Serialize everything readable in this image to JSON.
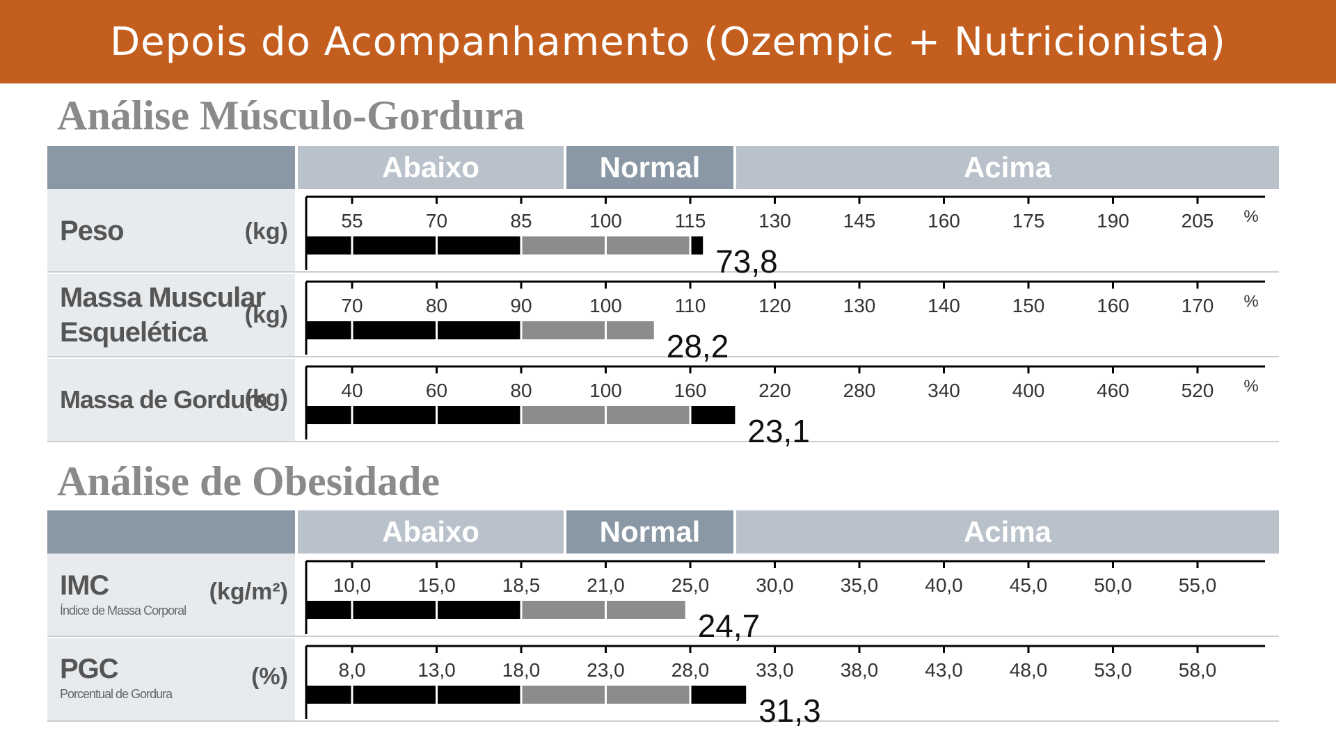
{
  "header": {
    "title": "Depois do Acompanhamento (Ozempic + Nutricionista)"
  },
  "sections": [
    {
      "title": "Análise Músculo-Gordura",
      "bands": {
        "below": "Abaixo",
        "normal": "Normal",
        "above": "Acima"
      }
    },
    {
      "title": "Análise de Obesidade",
      "bands": {
        "below": "Abaixo",
        "normal": "Normal",
        "above": "Acima"
      }
    }
  ],
  "rows": {
    "peso": {
      "name": "Peso",
      "unit": "(kg)"
    },
    "smm": {
      "name_line1": "Massa Muscular",
      "name_line2": "Esquelética",
      "unit": "(kg)"
    },
    "fat": {
      "name": "Massa de Gordura",
      "unit": "(kg)"
    },
    "imc": {
      "name": "IMC",
      "subtitle": "Índice de Massa Corporal",
      "unit": "(kg/m²)"
    },
    "pgc": {
      "name": "PGC",
      "subtitle": "Porcentual de Gordura",
      "unit": "(%)"
    }
  },
  "colors": {
    "banner": "#c45e1e",
    "bar_below": "#000000",
    "bar_normal": "#8c8c8c",
    "bar_above": "#000000"
  },
  "chart_data": [
    {
      "type": "bar",
      "name": "Peso",
      "scale_ticks": [
        "55",
        "70",
        "85",
        "100",
        "115",
        "130",
        "145",
        "160",
        "175",
        "190",
        "205"
      ],
      "scale_unit": "%",
      "bar_extent_ticks": 4.15,
      "value": "73,8"
    },
    {
      "type": "bar",
      "name": "Massa Muscular Esquelética",
      "scale_ticks": [
        "70",
        "80",
        "90",
        "100",
        "110",
        "120",
        "130",
        "140",
        "150",
        "160",
        "170"
      ],
      "scale_unit": "%",
      "bar_extent_ticks": 3.57,
      "value": "28,2"
    },
    {
      "type": "bar",
      "name": "Massa de Gordura",
      "scale_ticks": [
        "40",
        "60",
        "80",
        "100",
        "160",
        "220",
        "280",
        "340",
        "400",
        "460",
        "520"
      ],
      "scale_unit": "%",
      "bar_extent_ticks": 4.53,
      "value": "23,1"
    },
    {
      "type": "bar",
      "name": "IMC",
      "scale_ticks": [
        "10,0",
        "15,0",
        "18,5",
        "21,0",
        "25,0",
        "30,0",
        "35,0",
        "40,0",
        "45,0",
        "50,0",
        "55,0"
      ],
      "scale_unit": "",
      "bar_extent_ticks": 3.94,
      "value": "24,7"
    },
    {
      "type": "bar",
      "name": "PGC",
      "scale_ticks": [
        "8,0",
        "13,0",
        "18,0",
        "23,0",
        "28,0",
        "33,0",
        "38,0",
        "43,0",
        "48,0",
        "53,0",
        "58,0"
      ],
      "scale_unit": "",
      "bar_extent_ticks": 4.66,
      "value": "31,3"
    }
  ]
}
